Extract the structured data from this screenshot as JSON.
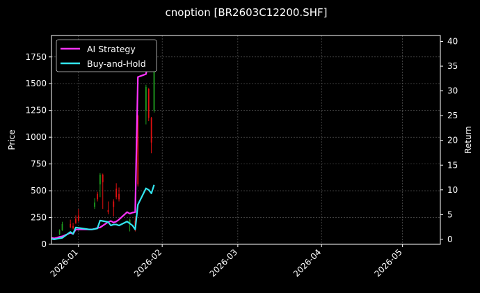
{
  "chart_data": {
    "type": "line",
    "title": "cnoption [BR2603C12200.SHF]",
    "ylabel_left": "Price",
    "ylabel_right": "Return",
    "x_ticks": [
      "2026-01",
      "2026-02",
      "2026-03",
      "2026-04",
      "2026-05"
    ],
    "y_left_ticks": [
      "0",
      "250",
      "500",
      "750",
      "1000",
      "1250",
      "1500",
      "1750"
    ],
    "y_right_ticks": [
      "0",
      "5",
      "10",
      "15",
      "20",
      "25",
      "30",
      "35",
      "40"
    ],
    "xlim": [
      "2025-12-22",
      "2026-05-15"
    ],
    "ylim_left": [
      0,
      1950
    ],
    "ylim_right": [
      -1,
      41.2
    ],
    "grid": true,
    "legend_position": "top-left",
    "colors": {
      "background": "#000000",
      "ai_strategy": "#ff33ff",
      "buy_and_hold": "#33e6f0",
      "candle_up": "#1fa01f",
      "candle_down": "#e01010",
      "grid": "#666666"
    },
    "series": [
      {
        "name": "AI Strategy",
        "axis": "right",
        "x": [
          "2025-12-22",
          "2025-12-23",
          "2025-12-24",
          "2025-12-25",
          "2025-12-26",
          "2025-12-29",
          "2025-12-30",
          "2025-12-31",
          "2026-01-05",
          "2026-01-06",
          "2026-01-07",
          "2026-01-08",
          "2026-01-09",
          "2026-01-12",
          "2026-01-13",
          "2026-01-14",
          "2026-01-15",
          "2026-01-16",
          "2026-01-19",
          "2026-01-20",
          "2026-01-21",
          "2026-01-22",
          "2026-01-23",
          "2026-01-26",
          "2026-01-27",
          "2026-01-28",
          "2026-01-29"
        ],
        "values": [
          0.3,
          0.2,
          0.3,
          0.5,
          0.6,
          1.3,
          1.1,
          2.0,
          2.0,
          2.0,
          2.1,
          2.3,
          2.4,
          3.5,
          3.7,
          3.4,
          3.6,
          4.0,
          5.5,
          5.2,
          5.4,
          5.5,
          32.8,
          33.4,
          36.3,
          37.2,
          36.0
        ]
      },
      {
        "name": "Buy-and-Hold",
        "axis": "right",
        "x": [
          "2025-12-22",
          "2025-12-23",
          "2025-12-24",
          "2025-12-25",
          "2025-12-26",
          "2025-12-29",
          "2025-12-30",
          "2025-12-31",
          "2026-01-05",
          "2026-01-06",
          "2026-01-07",
          "2026-01-08",
          "2026-01-09",
          "2026-01-12",
          "2026-01-13",
          "2026-01-14",
          "2026-01-15",
          "2026-01-16",
          "2026-01-19",
          "2026-01-20",
          "2026-01-21",
          "2026-01-22",
          "2026-01-23",
          "2026-01-26",
          "2026-01-27",
          "2026-01-28",
          "2026-01-29"
        ],
        "values": [
          0.1,
          0.0,
          0.1,
          0.2,
          0.3,
          1.5,
          1.1,
          2.4,
          2.0,
          2.0,
          2.1,
          2.2,
          3.8,
          3.5,
          2.8,
          3.0,
          3.0,
          2.8,
          3.6,
          3.2,
          2.8,
          2.0,
          7.0,
          10.3,
          10.0,
          9.3,
          11.0
        ]
      }
    ],
    "candles": [
      {
        "x": "2025-12-25",
        "open": 95,
        "close": 130,
        "high": 140,
        "low": 85
      },
      {
        "x": "2025-12-26",
        "open": 130,
        "close": 190,
        "high": 210,
        "low": 125
      },
      {
        "x": "2025-12-29",
        "open": 190,
        "close": 160,
        "high": 230,
        "low": 150
      },
      {
        "x": "2025-12-30",
        "open": 170,
        "close": 150,
        "high": 200,
        "low": 140
      },
      {
        "x": "2025-12-31",
        "open": 240,
        "close": 200,
        "high": 270,
        "low": 190
      },
      {
        "x": "2026-01-01",
        "open": 270,
        "close": 220,
        "high": 330,
        "low": 210
      },
      {
        "x": "2026-01-07",
        "open": 350,
        "close": 390,
        "high": 430,
        "low": 330
      },
      {
        "x": "2026-01-08",
        "open": 470,
        "close": 420,
        "high": 490,
        "low": 400
      },
      {
        "x": "2026-01-09",
        "open": 560,
        "close": 650,
        "high": 665,
        "low": 440
      },
      {
        "x": "2026-01-10",
        "open": 650,
        "close": 580,
        "high": 660,
        "low": 330
      },
      {
        "x": "2026-01-12",
        "open": 320,
        "close": 300,
        "high": 400,
        "low": 280
      },
      {
        "x": "2026-01-14",
        "open": 400,
        "close": 350,
        "high": 420,
        "low": 260
      },
      {
        "x": "2026-01-15",
        "open": 520,
        "close": 440,
        "high": 570,
        "low": 420
      },
      {
        "x": "2026-01-16",
        "open": 470,
        "close": 420,
        "high": 530,
        "low": 400
      },
      {
        "x": "2026-01-20",
        "open": 200,
        "close": 230,
        "high": 240,
        "low": 120
      },
      {
        "x": "2026-01-22",
        "open": 220,
        "close": 170,
        "high": 260,
        "low": 120
      },
      {
        "x": "2026-01-23",
        "open": 1200,
        "close": 560,
        "high": 1210,
        "low": 540
      },
      {
        "x": "2026-01-26",
        "open": 1250,
        "close": 1470,
        "high": 1490,
        "low": 1120
      },
      {
        "x": "2026-01-27",
        "open": 1450,
        "close": 1180,
        "high": 1460,
        "low": 1150
      },
      {
        "x": "2026-01-28",
        "open": 1180,
        "close": 950,
        "high": 1190,
        "low": 850
      },
      {
        "x": "2026-01-29",
        "open": 1250,
        "close": 1780,
        "high": 1860,
        "low": 1230
      }
    ]
  }
}
